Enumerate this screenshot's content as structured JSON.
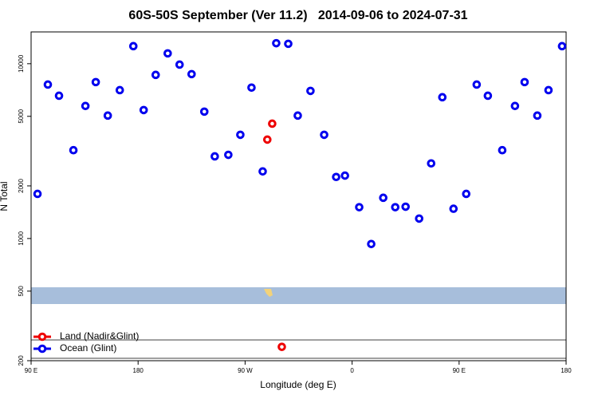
{
  "chart_data": {
    "type": "scatter",
    "title": "60S-50S September (Ver 11.2)   2014-09-06 to 2024-07-31",
    "xlabel": "Longitude (deg E)",
    "ylabel": "N Total",
    "xlim": [
      -270,
      180
    ],
    "xticks": [
      {
        "value": -270,
        "label": "90 E"
      },
      {
        "value": -180,
        "label": "180"
      },
      {
        "value": -90,
        "label": "90 W"
      },
      0,
      {
        "value": 90,
        "label": "90 E"
      },
      180
    ],
    "ylim": [
      200,
      15200
    ],
    "log_y": true,
    "yticks": [
      200,
      500,
      1000,
      2000,
      5000,
      10000
    ],
    "legend": "bottomleft",
    "series": [
      {
        "name": "Land (Nadir&Glint)",
        "color": "#ee0000",
        "x": [
          -67.2,
          -71.3,
          -59.1
        ],
        "values": [
          4540,
          3680,
          240
        ]
      },
      {
        "name": "Ocean (Glint)",
        "color": "#0000ee",
        "x": [
          -264.6,
          -255.9,
          -246.5,
          -234.4,
          -224.3,
          -215.6,
          -205.5,
          -195.4,
          -184.0,
          -175.3,
          -165.2,
          -155.1,
          -145.1,
          -135.0,
          -124.3,
          -115.5,
          -104.1,
          -94.0,
          -84.6,
          -75.2,
          -63.8,
          -53.7,
          -45.7,
          -35.0,
          -23.5,
          -13.4,
          -6.0,
          6.0,
          16.1,
          26.2,
          36.3,
          45.0,
          56.4,
          66.5,
          75.9,
          85.3,
          96.0,
          104.8,
          114.2,
          126.3,
          137.0,
          145.1,
          155.8,
          165.2,
          176.6
        ],
        "values": [
          1800,
          7600,
          6560,
          3200,
          5730,
          7850,
          5050,
          7060,
          12600,
          5430,
          8630,
          11460,
          9880,
          8720,
          5320,
          2950,
          3010,
          3920,
          7300,
          2420,
          13100,
          13000,
          5050,
          6990,
          3920,
          2250,
          2290,
          1510,
          930,
          1710,
          1510,
          1520,
          1300,
          2690,
          6430,
          1480,
          1800,
          7600,
          6560,
          3200,
          5730,
          7850,
          5050,
          7060,
          12600
        ]
      }
    ]
  }
}
